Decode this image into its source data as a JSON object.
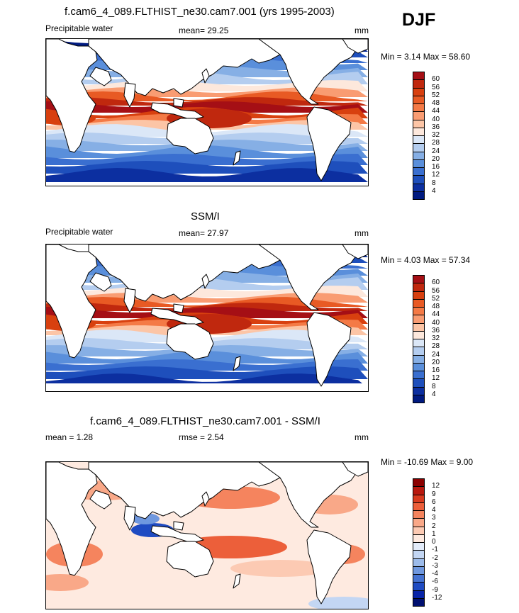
{
  "season": "DJF",
  "colors": {
    "land_fill": "#ffffff",
    "coast": "#000000",
    "frame": "#000000",
    "missing": "#ffffff"
  },
  "land_icon": "continent-outline-shape",
  "panels": [
    {
      "id": "model",
      "title": "f.cam6_4_089.FLTHIST_ne30.cam7.001 (yrs 1995-2003)",
      "left_label": "Precipitable water",
      "stat_label": "mean=  29.25",
      "units": "mm",
      "minmax": "Min =  3.14 Max =  58.60",
      "field": "absolute",
      "colorbar": {
        "labels": [
          "60",
          "56",
          "52",
          "48",
          "44",
          "40",
          "36",
          "32",
          "28",
          "24",
          "20",
          "16",
          "12",
          "8",
          "4"
        ],
        "colors": [
          "#a50f15",
          "#c0280e",
          "#d8400f",
          "#e85a24",
          "#f47a46",
          "#f99c72",
          "#fcc5a6",
          "#fde8dc",
          "#dbe7f7",
          "#b4cdef",
          "#86afe5",
          "#5a8fdb",
          "#3a6fd0",
          "#1e4fbc",
          "#0c2fa0",
          "#001a80"
        ]
      }
    },
    {
      "id": "obs",
      "title": "SSM/I",
      "left_label": "Precipitable water",
      "stat_label": "mean=  27.97",
      "units": "mm",
      "minmax": "Min =  4.03 Max =  57.34",
      "field": "absolute",
      "colorbar": {
        "labels": [
          "60",
          "56",
          "52",
          "48",
          "44",
          "40",
          "36",
          "32",
          "28",
          "24",
          "20",
          "16",
          "12",
          "8",
          "4"
        ],
        "colors": [
          "#a50f15",
          "#c0280e",
          "#d8400f",
          "#e85a24",
          "#f47a46",
          "#f99c72",
          "#fcc5a6",
          "#fde8dc",
          "#dbe7f7",
          "#b4cdef",
          "#86afe5",
          "#5a8fdb",
          "#3a6fd0",
          "#1e4fbc",
          "#0c2fa0",
          "#001a80"
        ]
      }
    },
    {
      "id": "diff",
      "title": "f.cam6_4_089.FLTHIST_ne30.cam7.001 - SSM/I",
      "left_label": "mean =   1.28",
      "stat_label": "rmse =   2.54",
      "units": "mm",
      "minmax": "Min = -10.69 Max =   9.00",
      "field": "difference",
      "colorbar": {
        "labels": [
          "12",
          "9",
          "6",
          "4",
          "3",
          "2",
          "1",
          "0",
          "-1",
          "-2",
          "-3",
          "-4",
          "-6",
          "-9",
          "-12"
        ],
        "colors": [
          "#8b0000",
          "#b8180e",
          "#d83a1e",
          "#ec5f3a",
          "#f5845e",
          "#f9a888",
          "#fccab3",
          "#feeae0",
          "#e3ecfa",
          "#c3d6f3",
          "#9cbbea",
          "#6f98df",
          "#4573d2",
          "#1f4bc2",
          "#0824a8",
          "#001070"
        ]
      }
    }
  ]
}
